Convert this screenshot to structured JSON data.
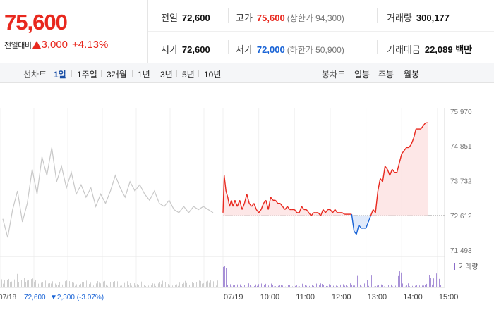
{
  "header": {
    "price": "75,600",
    "change_label": "전일대비",
    "change_amount": "3,000",
    "change_pct": "+4.13%",
    "row1": [
      {
        "key": "전일",
        "value": "72,600",
        "sub": "",
        "color": "normal"
      },
      {
        "key": "고가",
        "value": "75,600",
        "sub": "(상한가 94,300)",
        "color": "red"
      },
      {
        "key": "거래량",
        "value": "300,177",
        "sub": "",
        "color": "normal"
      }
    ],
    "row2": [
      {
        "key": "시가",
        "value": "72,600",
        "sub": "",
        "color": "normal"
      },
      {
        "key": "저가",
        "value": "72,000",
        "sub": "(하한가 50,900)",
        "color": "blue"
      },
      {
        "key": "거래대금",
        "value": "22,089 백만",
        "sub": "",
        "color": "normal"
      }
    ]
  },
  "toolbar": {
    "line_label": "선차트",
    "line_periods": [
      "1일",
      "1주일",
      "3개월",
      "1년",
      "3년",
      "5년",
      "10년"
    ],
    "active_period": "1일",
    "candle_label": "봉차트",
    "candle_periods": [
      "일봉",
      "주봉",
      "월봉"
    ]
  },
  "colors": {
    "up": "#e8281e",
    "down": "#1a64d6",
    "prev_day": "#c8c8c8",
    "up_fill": "#fde3e3",
    "down_fill": "#dde8fb",
    "volume": "#8b6cc9"
  },
  "chart_data": {
    "type": "line",
    "y_ticks": [
      "75,970",
      "74,851",
      "73,732",
      "72,612",
      "71,493"
    ],
    "y_tick_values": [
      75970,
      74851,
      73732,
      72612,
      71493
    ],
    "base_price": 72612,
    "x_ticks": [
      "07/19",
      "10:00",
      "11:00",
      "12:00",
      "13:00",
      "14:00",
      "15:00"
    ],
    "x_tick_times": [
      540,
      600,
      660,
      720,
      780,
      840,
      900
    ],
    "session_start": 540,
    "session_end": 912,
    "prev_day": {
      "date": "07/18",
      "close": "72,600",
      "change_text": "▼2,300 (-3.07%)",
      "values": [
        72500,
        71900,
        72800,
        73400,
        72400,
        73000,
        74100,
        73300,
        74500,
        73900,
        74800,
        73700,
        74200,
        73500,
        74000,
        73300,
        73600,
        73200,
        73500,
        72900,
        73300,
        73000,
        73400,
        73900,
        73500,
        73200,
        73700,
        73400,
        73600,
        73300,
        73100,
        73400,
        73000,
        72900,
        73100,
        72800,
        72700,
        72900,
        72700,
        72900,
        72800,
        72900,
        72800,
        72700
      ]
    },
    "today": {
      "points": [
        [
          540,
          72700
        ],
        [
          542,
          73900
        ],
        [
          545,
          73400
        ],
        [
          548,
          73200
        ],
        [
          551,
          72900
        ],
        [
          554,
          73100
        ],
        [
          557,
          72900
        ],
        [
          560,
          73100
        ],
        [
          564,
          72900
        ],
        [
          568,
          73100
        ],
        [
          572,
          72800
        ],
        [
          576,
          73000
        ],
        [
          580,
          73300
        ],
        [
          584,
          73000
        ],
        [
          588,
          72900
        ],
        [
          592,
          73000
        ],
        [
          596,
          72800
        ],
        [
          600,
          72700
        ],
        [
          604,
          72800
        ],
        [
          608,
          73000
        ],
        [
          612,
          73100
        ],
        [
          616,
          72800
        ],
        [
          620,
          73200
        ],
        [
          624,
          73100
        ],
        [
          628,
          73100
        ],
        [
          632,
          73000
        ],
        [
          636,
          73000
        ],
        [
          640,
          72900
        ],
        [
          644,
          72800
        ],
        [
          648,
          72900
        ],
        [
          652,
          72800
        ],
        [
          656,
          72800
        ],
        [
          660,
          72800
        ],
        [
          664,
          72700
        ],
        [
          668,
          72700
        ],
        [
          672,
          72900
        ],
        [
          676,
          72800
        ],
        [
          680,
          72800
        ],
        [
          684,
          72700
        ],
        [
          688,
          72600
        ],
        [
          692,
          72700
        ],
        [
          696,
          72700
        ],
        [
          700,
          72700
        ],
        [
          704,
          72600
        ],
        [
          708,
          72800
        ],
        [
          712,
          72700
        ],
        [
          716,
          72800
        ],
        [
          720,
          72800
        ],
        [
          724,
          72700
        ],
        [
          728,
          72800
        ],
        [
          732,
          72700
        ],
        [
          736,
          72700
        ],
        [
          740,
          72700
        ],
        [
          744,
          72650
        ],
        [
          748,
          72650
        ],
        [
          752,
          72650
        ],
        [
          756,
          72650
        ],
        [
          760,
          72100
        ],
        [
          764,
          72000
        ],
        [
          768,
          72300
        ],
        [
          772,
          72200
        ],
        [
          776,
          72200
        ],
        [
          780,
          72200
        ],
        [
          784,
          72400
        ],
        [
          788,
          72600
        ],
        [
          792,
          72800
        ],
        [
          796,
          72700
        ],
        [
          800,
          73400
        ],
        [
          804,
          73800
        ],
        [
          808,
          73700
        ],
        [
          812,
          74200
        ],
        [
          816,
          74100
        ],
        [
          820,
          73900
        ],
        [
          824,
          74100
        ],
        [
          828,
          74000
        ],
        [
          832,
          74000
        ],
        [
          836,
          74300
        ],
        [
          840,
          74600
        ],
        [
          844,
          74700
        ],
        [
          848,
          74800
        ],
        [
          852,
          74800
        ],
        [
          856,
          74900
        ],
        [
          860,
          75100
        ],
        [
          864,
          75400
        ],
        [
          868,
          75400
        ],
        [
          872,
          75400
        ],
        [
          876,
          75500
        ],
        [
          880,
          75600
        ],
        [
          884,
          75600
        ]
      ]
    },
    "volume_label": "거래량"
  }
}
